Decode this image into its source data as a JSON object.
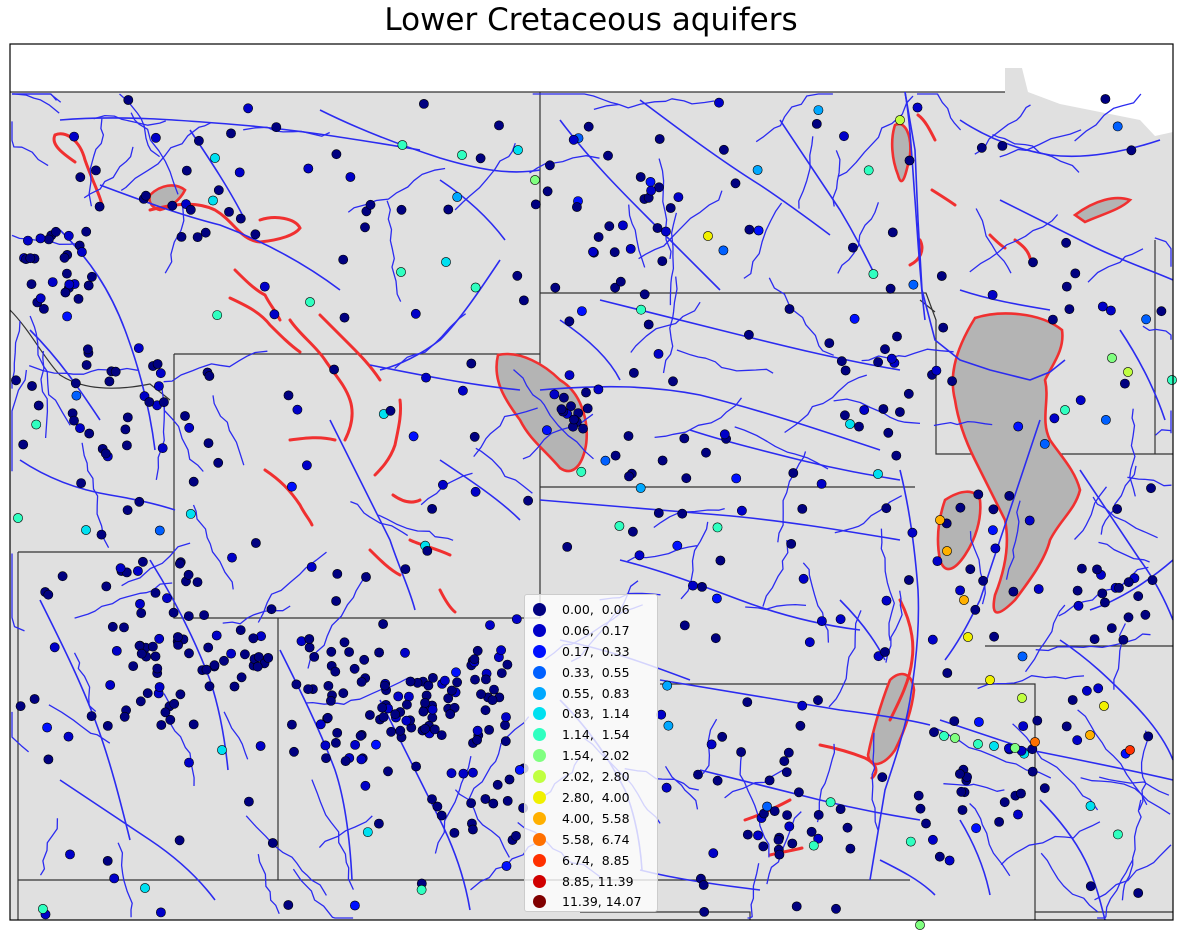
{
  "title": "Lower Cretaceous aquifers",
  "colors": {
    "land": "#e0e0e0",
    "state_border": "#333333",
    "river": "#2b2bf0",
    "aquifer_outline": "#f03030",
    "aquifer_fill": "#b4b4b4"
  },
  "legend": {
    "entries": [
      {
        "label": "0.00,  0.06",
        "color": "#000080"
      },
      {
        "label": "0.06,  0.17",
        "color": "#0000c8"
      },
      {
        "label": "0.17,  0.33",
        "color": "#0010ff"
      },
      {
        "label": "0.33,  0.55",
        "color": "#0060ff"
      },
      {
        "label": "0.55,  0.83",
        "color": "#00a8ff"
      },
      {
        "label": "0.83,  1.14",
        "color": "#00e0f0"
      },
      {
        "label": "1.14,  1.54",
        "color": "#30ffc0"
      },
      {
        "label": "1.54,  2.02",
        "color": "#80ff80"
      },
      {
        "label": "2.02,  2.80",
        "color": "#c0ff40"
      },
      {
        "label": "2.80,  4.00",
        "color": "#f0f000"
      },
      {
        "label": "4.00,  5.58",
        "color": "#ffb000"
      },
      {
        "label": "5.58,  6.74",
        "color": "#ff7000"
      },
      {
        "label": "6.74,  8.85",
        "color": "#ff3000"
      },
      {
        "label": "8.85, 11.39",
        "color": "#d00000"
      },
      {
        "label": "11.39, 14.07",
        "color": "#800000"
      }
    ]
  }
}
